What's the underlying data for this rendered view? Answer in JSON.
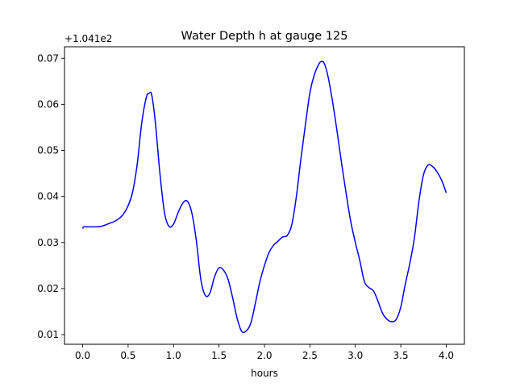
{
  "chart_data": {
    "type": "line",
    "title": "Water Depth h at gauge 125",
    "xlabel": "hours",
    "ylabel": "",
    "y_offset_label": "+1.041e2",
    "xlim": [
      -0.2,
      4.2
    ],
    "ylim": [
      0.0079,
      0.0725
    ],
    "x_ticks": [
      0.0,
      0.5,
      1.0,
      1.5,
      2.0,
      2.5,
      3.0,
      3.5,
      4.0
    ],
    "x_tick_labels": [
      "0.0",
      "0.5",
      "1.0",
      "1.5",
      "2.0",
      "2.5",
      "3.0",
      "3.5",
      "4.0"
    ],
    "y_ticks": [
      0.01,
      0.02,
      0.03,
      0.04,
      0.05,
      0.06,
      0.07
    ],
    "y_tick_labels": [
      "0.01",
      "0.02",
      "0.03",
      "0.04",
      "0.05",
      "0.06",
      "0.07"
    ],
    "grid": false,
    "series": [
      {
        "color": "#0000ff",
        "x": [
          0.0,
          0.01,
          0.05,
          0.1,
          0.15,
          0.2,
          0.25,
          0.3,
          0.35,
          0.4,
          0.45,
          0.5,
          0.55,
          0.6,
          0.65,
          0.7,
          0.73,
          0.76,
          0.8,
          0.85,
          0.9,
          0.95,
          1.0,
          1.05,
          1.1,
          1.15,
          1.2,
          1.25,
          1.3,
          1.35,
          1.4,
          1.45,
          1.5,
          1.55,
          1.6,
          1.65,
          1.7,
          1.75,
          1.8,
          1.85,
          1.9,
          1.95,
          2.0,
          2.05,
          2.1,
          2.15,
          2.2,
          2.25,
          2.3,
          2.35,
          2.4,
          2.45,
          2.5,
          2.55,
          2.6,
          2.63,
          2.66,
          2.7,
          2.75,
          2.8,
          2.85,
          2.9,
          2.95,
          3.0,
          3.05,
          3.1,
          3.15,
          3.2,
          3.25,
          3.3,
          3.35,
          3.4,
          3.45,
          3.5,
          3.55,
          3.6,
          3.65,
          3.7,
          3.75,
          3.8,
          3.85,
          3.9,
          3.95,
          4.0
        ],
        "y": [
          0.033,
          0.0334,
          0.0334,
          0.0334,
          0.0334,
          0.0335,
          0.0338,
          0.0342,
          0.0346,
          0.0352,
          0.0362,
          0.038,
          0.041,
          0.047,
          0.056,
          0.0615,
          0.0624,
          0.062,
          0.056,
          0.045,
          0.0365,
          0.0335,
          0.034,
          0.0365,
          0.0385,
          0.039,
          0.0365,
          0.0305,
          0.022,
          0.0185,
          0.019,
          0.0225,
          0.0245,
          0.024,
          0.022,
          0.018,
          0.0135,
          0.0107,
          0.0108,
          0.0125,
          0.0168,
          0.0215,
          0.025,
          0.0278,
          0.0294,
          0.0303,
          0.0312,
          0.0315,
          0.0338,
          0.0398,
          0.048,
          0.0555,
          0.0625,
          0.0665,
          0.0688,
          0.0693,
          0.0688,
          0.066,
          0.0605,
          0.054,
          0.047,
          0.0405,
          0.0345,
          0.03,
          0.026,
          0.0215,
          0.0202,
          0.0195,
          0.0172,
          0.0146,
          0.0133,
          0.0128,
          0.0133,
          0.016,
          0.021,
          0.0255,
          0.031,
          0.039,
          0.0447,
          0.0468,
          0.0465,
          0.0453,
          0.0435,
          0.0408
        ]
      }
    ]
  }
}
